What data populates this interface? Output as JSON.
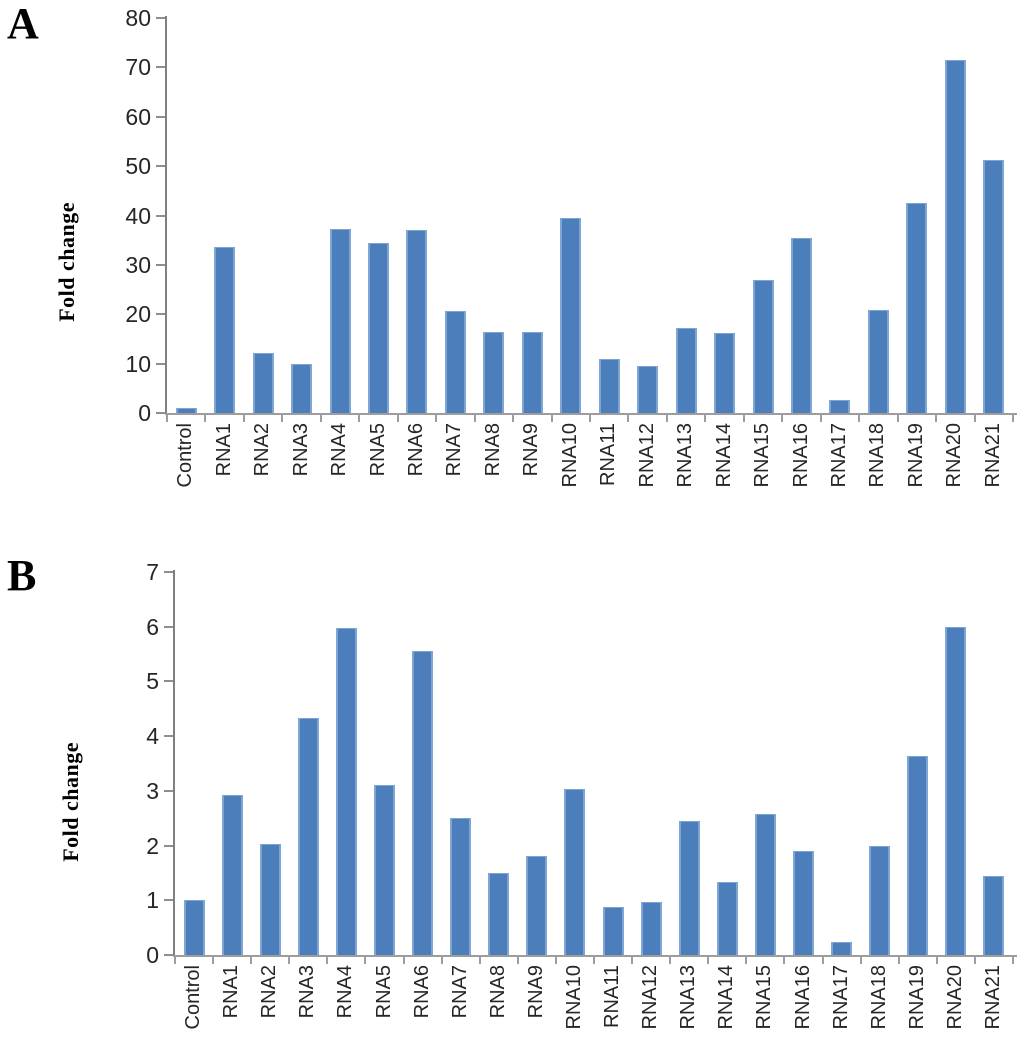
{
  "figure": {
    "panels": [
      {
        "letter": "A"
      },
      {
        "letter": "B"
      }
    ]
  },
  "chart_data": [
    {
      "type": "bar",
      "panel": "A",
      "title": "",
      "xlabel": "",
      "ylabel": "Fold change",
      "categories": [
        "Control",
        "RNA1",
        "RNA2",
        "RNA3",
        "RNA4",
        "RNA5",
        "RNA6",
        "RNA7",
        "RNA8",
        "RNA9",
        "RNA10",
        "RNA11",
        "RNA12",
        "RNA13",
        "RNA14",
        "RNA15",
        "RNA16",
        "RNA17",
        "RNA18",
        "RNA19",
        "RNA20",
        "RNA21"
      ],
      "values": [
        1.0,
        33.7,
        12.2,
        9.9,
        37.3,
        34.5,
        37.1,
        20.6,
        16.4,
        16.4,
        39.5,
        11.0,
        9.5,
        17.2,
        16.3,
        27.0,
        35.5,
        2.7,
        20.8,
        42.5,
        71.5,
        51.3
      ],
      "ylim": [
        0,
        80
      ],
      "yticks": [
        0,
        10,
        20,
        30,
        40,
        50,
        60,
        70,
        80
      ],
      "grid": false,
      "legend": "none",
      "bar_color": "#4d7ebc"
    },
    {
      "type": "bar",
      "panel": "B",
      "title": "",
      "xlabel": "",
      "ylabel": "Fold change",
      "categories": [
        "Control",
        "RNA1",
        "RNA2",
        "RNA3",
        "RNA4",
        "RNA5",
        "RNA6",
        "RNA7",
        "RNA8",
        "RNA9",
        "RNA10",
        "RNA11",
        "RNA12",
        "RNA13",
        "RNA14",
        "RNA15",
        "RNA16",
        "RNA17",
        "RNA18",
        "RNA19",
        "RNA20",
        "RNA21"
      ],
      "values": [
        1.0,
        2.93,
        2.02,
        4.33,
        5.98,
        3.1,
        5.55,
        2.5,
        1.5,
        1.81,
        3.04,
        0.88,
        0.97,
        2.44,
        1.33,
        2.57,
        1.9,
        0.23,
        1.99,
        3.63,
        6.0,
        1.45
      ],
      "ylim": [
        0,
        7
      ],
      "yticks": [
        0,
        1,
        2,
        3,
        4,
        5,
        6,
        7
      ],
      "grid": false,
      "legend": "none",
      "bar_color": "#4d7ebc"
    }
  ]
}
